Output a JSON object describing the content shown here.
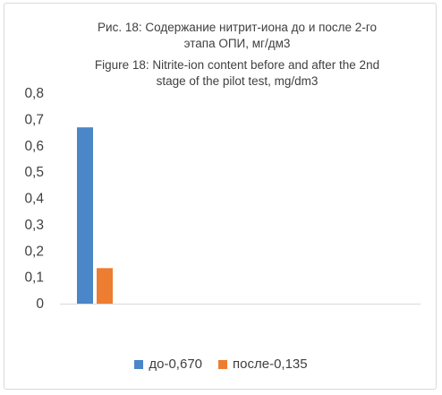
{
  "chart_data": {
    "type": "bar",
    "title_lines": [
      "Рис. 18: Содержание нитрит-иона до и после 2-го",
      "этапа ОПИ, мг/дм3",
      "Figure 18: Nitrite-ion content before and after the 2nd",
      "stage of the pilot test, mg/dm3"
    ],
    "y_ticks": [
      "0",
      "0,1",
      "0,2",
      "0,3",
      "0,4",
      "0,5",
      "0,6",
      "0,7",
      "0,8"
    ],
    "ylim": [
      0,
      0.8
    ],
    "grid": false,
    "legend_position": "bottom",
    "series": [
      {
        "name": "до-0,670",
        "value": 0.67,
        "color": "#4a86c8"
      },
      {
        "name": "после-0,135",
        "value": 0.135,
        "color": "#ed7d31"
      }
    ]
  }
}
